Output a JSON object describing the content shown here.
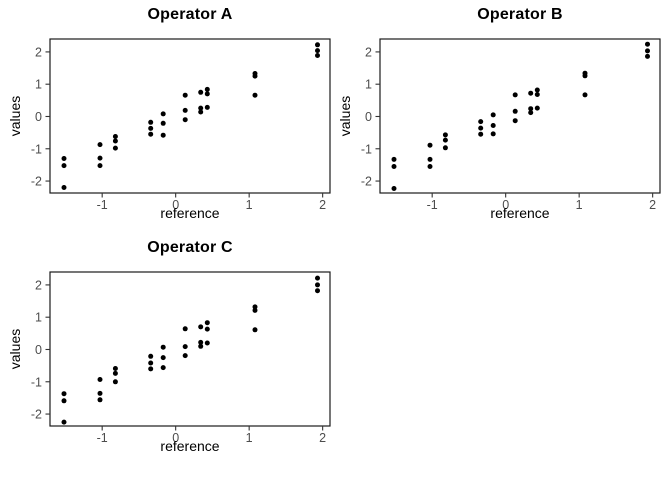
{
  "figure": {
    "background_color": "#ffffff",
    "point_color": "#000000",
    "panel_border_color": "#1a1a1a",
    "tick_color": "#333333",
    "tick_label_color": "#4d4d4d",
    "title_color": "#000000"
  },
  "chart_data": [
    {
      "type": "scatter",
      "title": "Operator A",
      "xlabel": "reference",
      "ylabel": "values",
      "x_ticks": [
        "-1",
        "0",
        "1",
        "2"
      ],
      "y_ticks": [
        "-2",
        "-1",
        "0",
        "1",
        "2"
      ],
      "xlim": [
        -1.71,
        2.1
      ],
      "ylim": [
        -2.37,
        2.4
      ],
      "grid": false,
      "legend": false,
      "x": [
        -1.52,
        -1.52,
        -1.52,
        -1.03,
        -1.03,
        -1.03,
        -0.82,
        -0.82,
        -0.82,
        -0.34,
        -0.34,
        -0.34,
        -0.17,
        -0.17,
        -0.17,
        0.13,
        0.13,
        0.13,
        0.34,
        0.34,
        0.34,
        0.43,
        0.43,
        0.43,
        1.08,
        1.08,
        1.08,
        1.93,
        1.93,
        1.93
      ],
      "y": [
        -1.3,
        -1.52,
        -2.2,
        -0.87,
        -1.29,
        -1.52,
        -0.62,
        -0.76,
        -0.98,
        -0.18,
        -0.37,
        -0.55,
        0.08,
        -0.21,
        -0.58,
        0.66,
        0.19,
        -0.1,
        0.75,
        0.26,
        0.14,
        0.84,
        0.7,
        0.28,
        1.33,
        1.25,
        0.66,
        2.22,
        2.04,
        1.89
      ]
    },
    {
      "type": "scatter",
      "title": "Operator B",
      "xlabel": "reference",
      "ylabel": "values",
      "x_ticks": [
        "-1",
        "0",
        "1",
        "2"
      ],
      "y_ticks": [
        "-2",
        "-1",
        "0",
        "1",
        "2"
      ],
      "xlim": [
        -1.71,
        2.1
      ],
      "ylim": [
        -2.37,
        2.4
      ],
      "grid": false,
      "legend": false,
      "x": [
        -1.52,
        -1.52,
        -1.52,
        -1.03,
        -1.03,
        -1.03,
        -0.82,
        -0.82,
        -0.82,
        -0.34,
        -0.34,
        -0.34,
        -0.17,
        -0.17,
        -0.17,
        0.13,
        0.13,
        0.13,
        0.34,
        0.34,
        0.34,
        0.43,
        0.43,
        0.43,
        1.08,
        1.08,
        1.08,
        1.93,
        1.93,
        1.93
      ],
      "y": [
        -1.33,
        -1.55,
        -2.23,
        -0.89,
        -1.33,
        -1.55,
        -0.57,
        -0.73,
        -0.97,
        -0.16,
        -0.36,
        -0.55,
        0.05,
        -0.28,
        -0.54,
        0.67,
        0.16,
        -0.13,
        0.72,
        0.24,
        0.12,
        0.82,
        0.68,
        0.26,
        1.34,
        1.26,
        0.67,
        2.24,
        2.03,
        1.86
      ]
    },
    {
      "type": "scatter",
      "title": "Operator C",
      "xlabel": "reference",
      "ylabel": "values",
      "x_ticks": [
        "-1",
        "0",
        "1",
        "2"
      ],
      "y_ticks": [
        "-2",
        "-1",
        "0",
        "1",
        "2"
      ],
      "xlim": [
        -1.71,
        2.1
      ],
      "ylim": [
        -2.37,
        2.4
      ],
      "grid": false,
      "legend": false,
      "x": [
        -1.52,
        -1.52,
        -1.52,
        -1.03,
        -1.03,
        -1.03,
        -0.82,
        -0.82,
        -0.82,
        -0.34,
        -0.34,
        -0.34,
        -0.17,
        -0.17,
        -0.17,
        0.13,
        0.13,
        0.13,
        0.34,
        0.34,
        0.34,
        0.43,
        0.43,
        0.43,
        1.08,
        1.08,
        1.08,
        1.93,
        1.93,
        1.93
      ],
      "y": [
        -1.37,
        -1.59,
        -2.25,
        -0.93,
        -1.36,
        -1.56,
        -0.59,
        -0.74,
        -1.0,
        -0.21,
        -0.42,
        -0.6,
        0.07,
        -0.25,
        -0.56,
        0.64,
        0.09,
        -0.19,
        0.7,
        0.22,
        0.1,
        0.83,
        0.63,
        0.2,
        1.32,
        1.21,
        0.61,
        2.21,
        2.0,
        1.82
      ]
    }
  ]
}
